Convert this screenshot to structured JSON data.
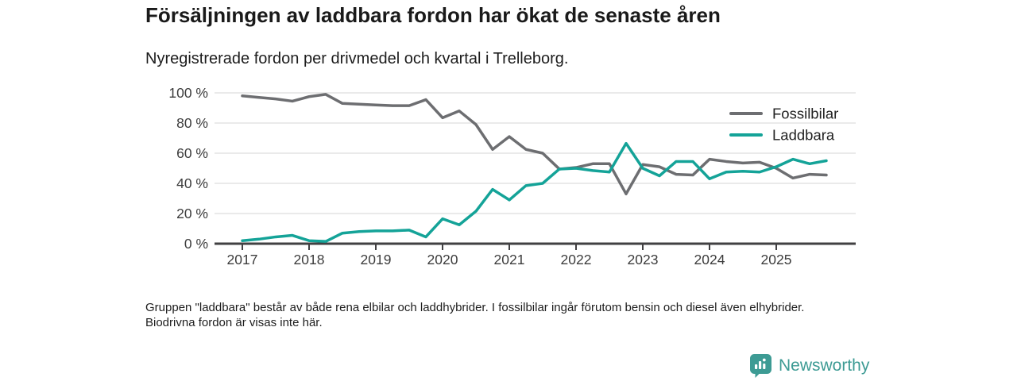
{
  "header": {
    "title": "Försäljningen av laddbara fordon har ökat de senaste åren",
    "subtitle": "Nyregistrerade fordon per drivmedel och kvartal i Trelleborg."
  },
  "chart_data": {
    "type": "line",
    "title": "Försäljningen av laddbara fordon har ökat de senaste åren",
    "subtitle": "Nyregistrerade fordon per drivmedel och kvartal i Trelleborg.",
    "xlabel": "",
    "ylabel": "",
    "ylim": [
      0,
      100
    ],
    "grid": true,
    "legend_position": "top-right",
    "x_tick_labels": [
      "2017",
      "2018",
      "2019",
      "2020",
      "2021",
      "2022",
      "2023",
      "2024",
      "2025"
    ],
    "y_tick_labels": [
      "0 %",
      "20 %",
      "40 %",
      "60 %",
      "80 %",
      "100 %"
    ],
    "categories": [
      "2017 Q1",
      "2017 Q2",
      "2017 Q3",
      "2017 Q4",
      "2018 Q1",
      "2018 Q2",
      "2018 Q3",
      "2018 Q4",
      "2019 Q1",
      "2019 Q2",
      "2019 Q3",
      "2019 Q4",
      "2020 Q1",
      "2020 Q2",
      "2020 Q3",
      "2020 Q4",
      "2021 Q1",
      "2021 Q2",
      "2021 Q3",
      "2021 Q4",
      "2022 Q1",
      "2022 Q2",
      "2022 Q3",
      "2022 Q4",
      "2023 Q1",
      "2023 Q2",
      "2023 Q3",
      "2023 Q4",
      "2024 Q1",
      "2024 Q2",
      "2024 Q3",
      "2024 Q4",
      "2025 Q1",
      "2025 Q2",
      "2025 Q3",
      "2025 Q4"
    ],
    "series": [
      {
        "name": "Fossilbilar",
        "color": "#6d6e71",
        "values": [
          98,
          97,
          96,
          94.5,
          97.5,
          99,
          93,
          92.5,
          92,
          91.5,
          91.5,
          95.5,
          83.5,
          88,
          79,
          62.5,
          71,
          62.5,
          60,
          49.5,
          50.5,
          53,
          53,
          33,
          52.5,
          51,
          46,
          45.5,
          56,
          54.5,
          53.5,
          54,
          50,
          43.5,
          46,
          45.5
        ]
      },
      {
        "name": "Laddbara",
        "color": "#14a398",
        "values": [
          2,
          3,
          4.5,
          5.5,
          2,
          1.5,
          7,
          8,
          8.5,
          8.5,
          9,
          4.5,
          16.5,
          12.5,
          21.5,
          36,
          29,
          38.5,
          40,
          49.5,
          50,
          48.5,
          47.5,
          66.5,
          50,
          45,
          54.5,
          54.5,
          43,
          47.5,
          48,
          47.5,
          51,
          56,
          53,
          55
        ]
      }
    ],
    "axis_color": "#414042",
    "gridline_color": "#dddddd",
    "tick_label_color": "#3c3c3c"
  },
  "footnote": "Gruppen \"laddbara\" består av både rena elbilar och laddhybrider. I fossilbilar ingår förutom bensin och diesel även elhybrider. Biodrivna fordon är visas inte här.",
  "logo": {
    "text": "Newsworthy",
    "color": "#3d9b94",
    "icon": "newsworthy-bar-chart-pin-icon"
  }
}
